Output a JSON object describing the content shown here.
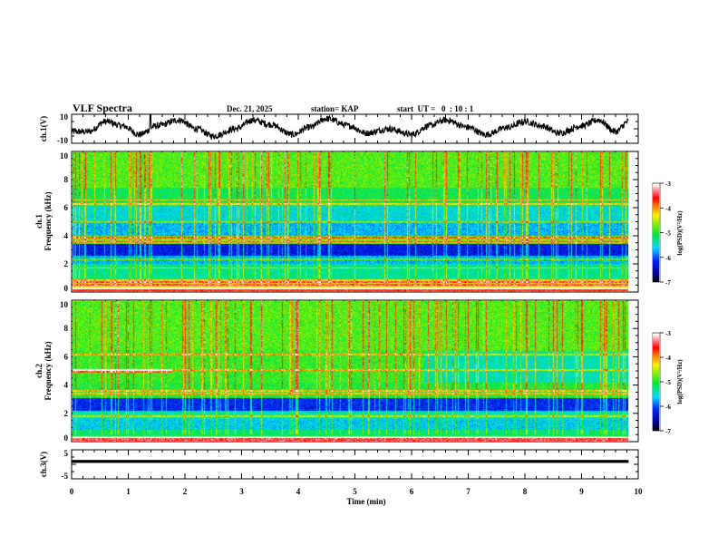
{
  "header": {
    "title": "VLF Spectra",
    "date": "Dec. 21, 2025",
    "station": "station= KAP",
    "start_ut": "start  UT =   0  : 10 : 1"
  },
  "chart_data": [
    {
      "type": "line",
      "name": "ch1-waveform",
      "ylabel": "ch.1(V)",
      "ylim": [
        -10,
        10
      ],
      "yticks": [
        "10",
        "-10"
      ],
      "xlim": [
        0,
        10
      ],
      "data_end_x": 9.83,
      "trend_description": "noisy waveform oscillating between about -8 and +9 V with ~1.5 min quasi-period",
      "envelope": {
        "x": [
          0,
          0.3,
          0.6,
          0.9,
          1.2,
          1.5,
          1.9,
          2.2,
          2.5,
          2.9,
          3.2,
          3.5,
          3.9,
          4.2,
          4.5,
          4.9,
          5.2,
          5.6,
          6.0,
          6.3,
          6.6,
          7.0,
          7.3,
          7.7,
          8.0,
          8.3,
          8.6,
          9.0,
          9.3,
          9.6,
          9.83
        ],
        "y": [
          -2,
          -2,
          5,
          2,
          -4,
          2,
          6,
          0,
          -5,
          0,
          6,
          3,
          -4,
          1,
          7,
          2,
          -3,
          0,
          -4,
          2,
          6,
          1,
          -4,
          1,
          5,
          2,
          -3,
          2,
          6,
          -2,
          5
        ]
      }
    },
    {
      "type": "heatmap",
      "name": "ch1-spectrogram",
      "ylabel": "ch.1\nFrequency (kHz)",
      "ylabel_line1": "ch.1",
      "ylabel_line2": "Frequency (kHz)",
      "ylim": [
        0,
        10
      ],
      "yticks": [
        "0",
        "2",
        "4",
        "6",
        "8",
        "10"
      ],
      "xlim": [
        0,
        10
      ],
      "data_end_x": 9.83,
      "colorbar": {
        "label": "log(PSD)(V²/Hz)",
        "range": [
          -7,
          -3
        ],
        "ticks": [
          "-3",
          "-4",
          "-5",
          "-6",
          "-7"
        ],
        "colormap": "black-blue-cyan-green-yellow-red-white"
      },
      "bands_khz": [
        {
          "from": 0.0,
          "to": 0.3,
          "level": -3.6
        },
        {
          "from": 0.3,
          "to": 0.9,
          "level": -4.3
        },
        {
          "from": 0.9,
          "to": 2.0,
          "level": -5.3
        },
        {
          "from": 2.0,
          "to": 2.6,
          "level": -5.7
        },
        {
          "from": 2.6,
          "to": 3.4,
          "level": -6.3
        },
        {
          "from": 3.4,
          "to": 4.0,
          "level": -4.7
        },
        {
          "from": 4.0,
          "to": 5.0,
          "level": -5.7
        },
        {
          "from": 5.0,
          "to": 6.2,
          "level": -5.5
        },
        {
          "from": 6.2,
          "to": 7.5,
          "level": -5.1
        },
        {
          "from": 7.5,
          "to": 10.0,
          "level": -4.8
        }
      ],
      "lines_khz": [
        0.25,
        0.5,
        0.7,
        1.7,
        2.3,
        3.6,
        3.9,
        5.0,
        6.3,
        6.6
      ]
    },
    {
      "type": "heatmap",
      "name": "ch2-spectrogram",
      "ylabel": "ch.2\nFrequency (kHz)",
      "ylabel_line1": "ch.2",
      "ylabel_line2": "Frequency (kHz)",
      "ylim": [
        0,
        10
      ],
      "yticks": [
        "0",
        "2",
        "4",
        "6",
        "8",
        "10"
      ],
      "xlim": [
        0,
        10
      ],
      "data_end_x": 9.83,
      "colorbar": {
        "label": "log(PSD)(V²/Hz)",
        "range": [
          -7,
          -3
        ],
        "ticks": [
          "-3",
          "-4",
          "-5",
          "-6",
          "-7"
        ],
        "colormap": "black-blue-cyan-green-yellow-red-white"
      },
      "bands_khz": [
        {
          "from": 0.0,
          "to": 0.3,
          "level": -3.4
        },
        {
          "from": 0.3,
          "to": 0.8,
          "level": -5.2
        },
        {
          "from": 0.8,
          "to": 1.6,
          "level": -5.6
        },
        {
          "from": 1.6,
          "to": 2.2,
          "level": -5.4
        },
        {
          "from": 2.2,
          "to": 3.1,
          "level": -6.2
        },
        {
          "from": 3.1,
          "to": 4.2,
          "level": -5.0
        },
        {
          "from": 4.2,
          "to": 6.5,
          "level": -4.9
        },
        {
          "from": 6.5,
          "to": 10.0,
          "level": -4.8
        }
      ],
      "lines_khz": [
        0.3,
        1.8,
        3.4,
        3.6,
        5.1,
        6.2
      ]
    },
    {
      "type": "line",
      "name": "ch3-waveform",
      "ylabel": "ch.3(V)",
      "ylim": [
        -5,
        5
      ],
      "yticks": [
        "5",
        "-5"
      ],
      "xlim": [
        0,
        10
      ],
      "data_end_x": 9.83,
      "trend_description": "flat dense trace near +1 V with thickness about ±0.5 V",
      "level_v": 1.0
    }
  ],
  "x_axis": {
    "label": "Time (min)",
    "ticks": [
      "0",
      "1",
      "2",
      "3",
      "4",
      "5",
      "6",
      "7",
      "8",
      "9",
      "10"
    ]
  },
  "colors": {
    "trace": "#000000",
    "frame": "#000000",
    "background": "#ffffff"
  }
}
